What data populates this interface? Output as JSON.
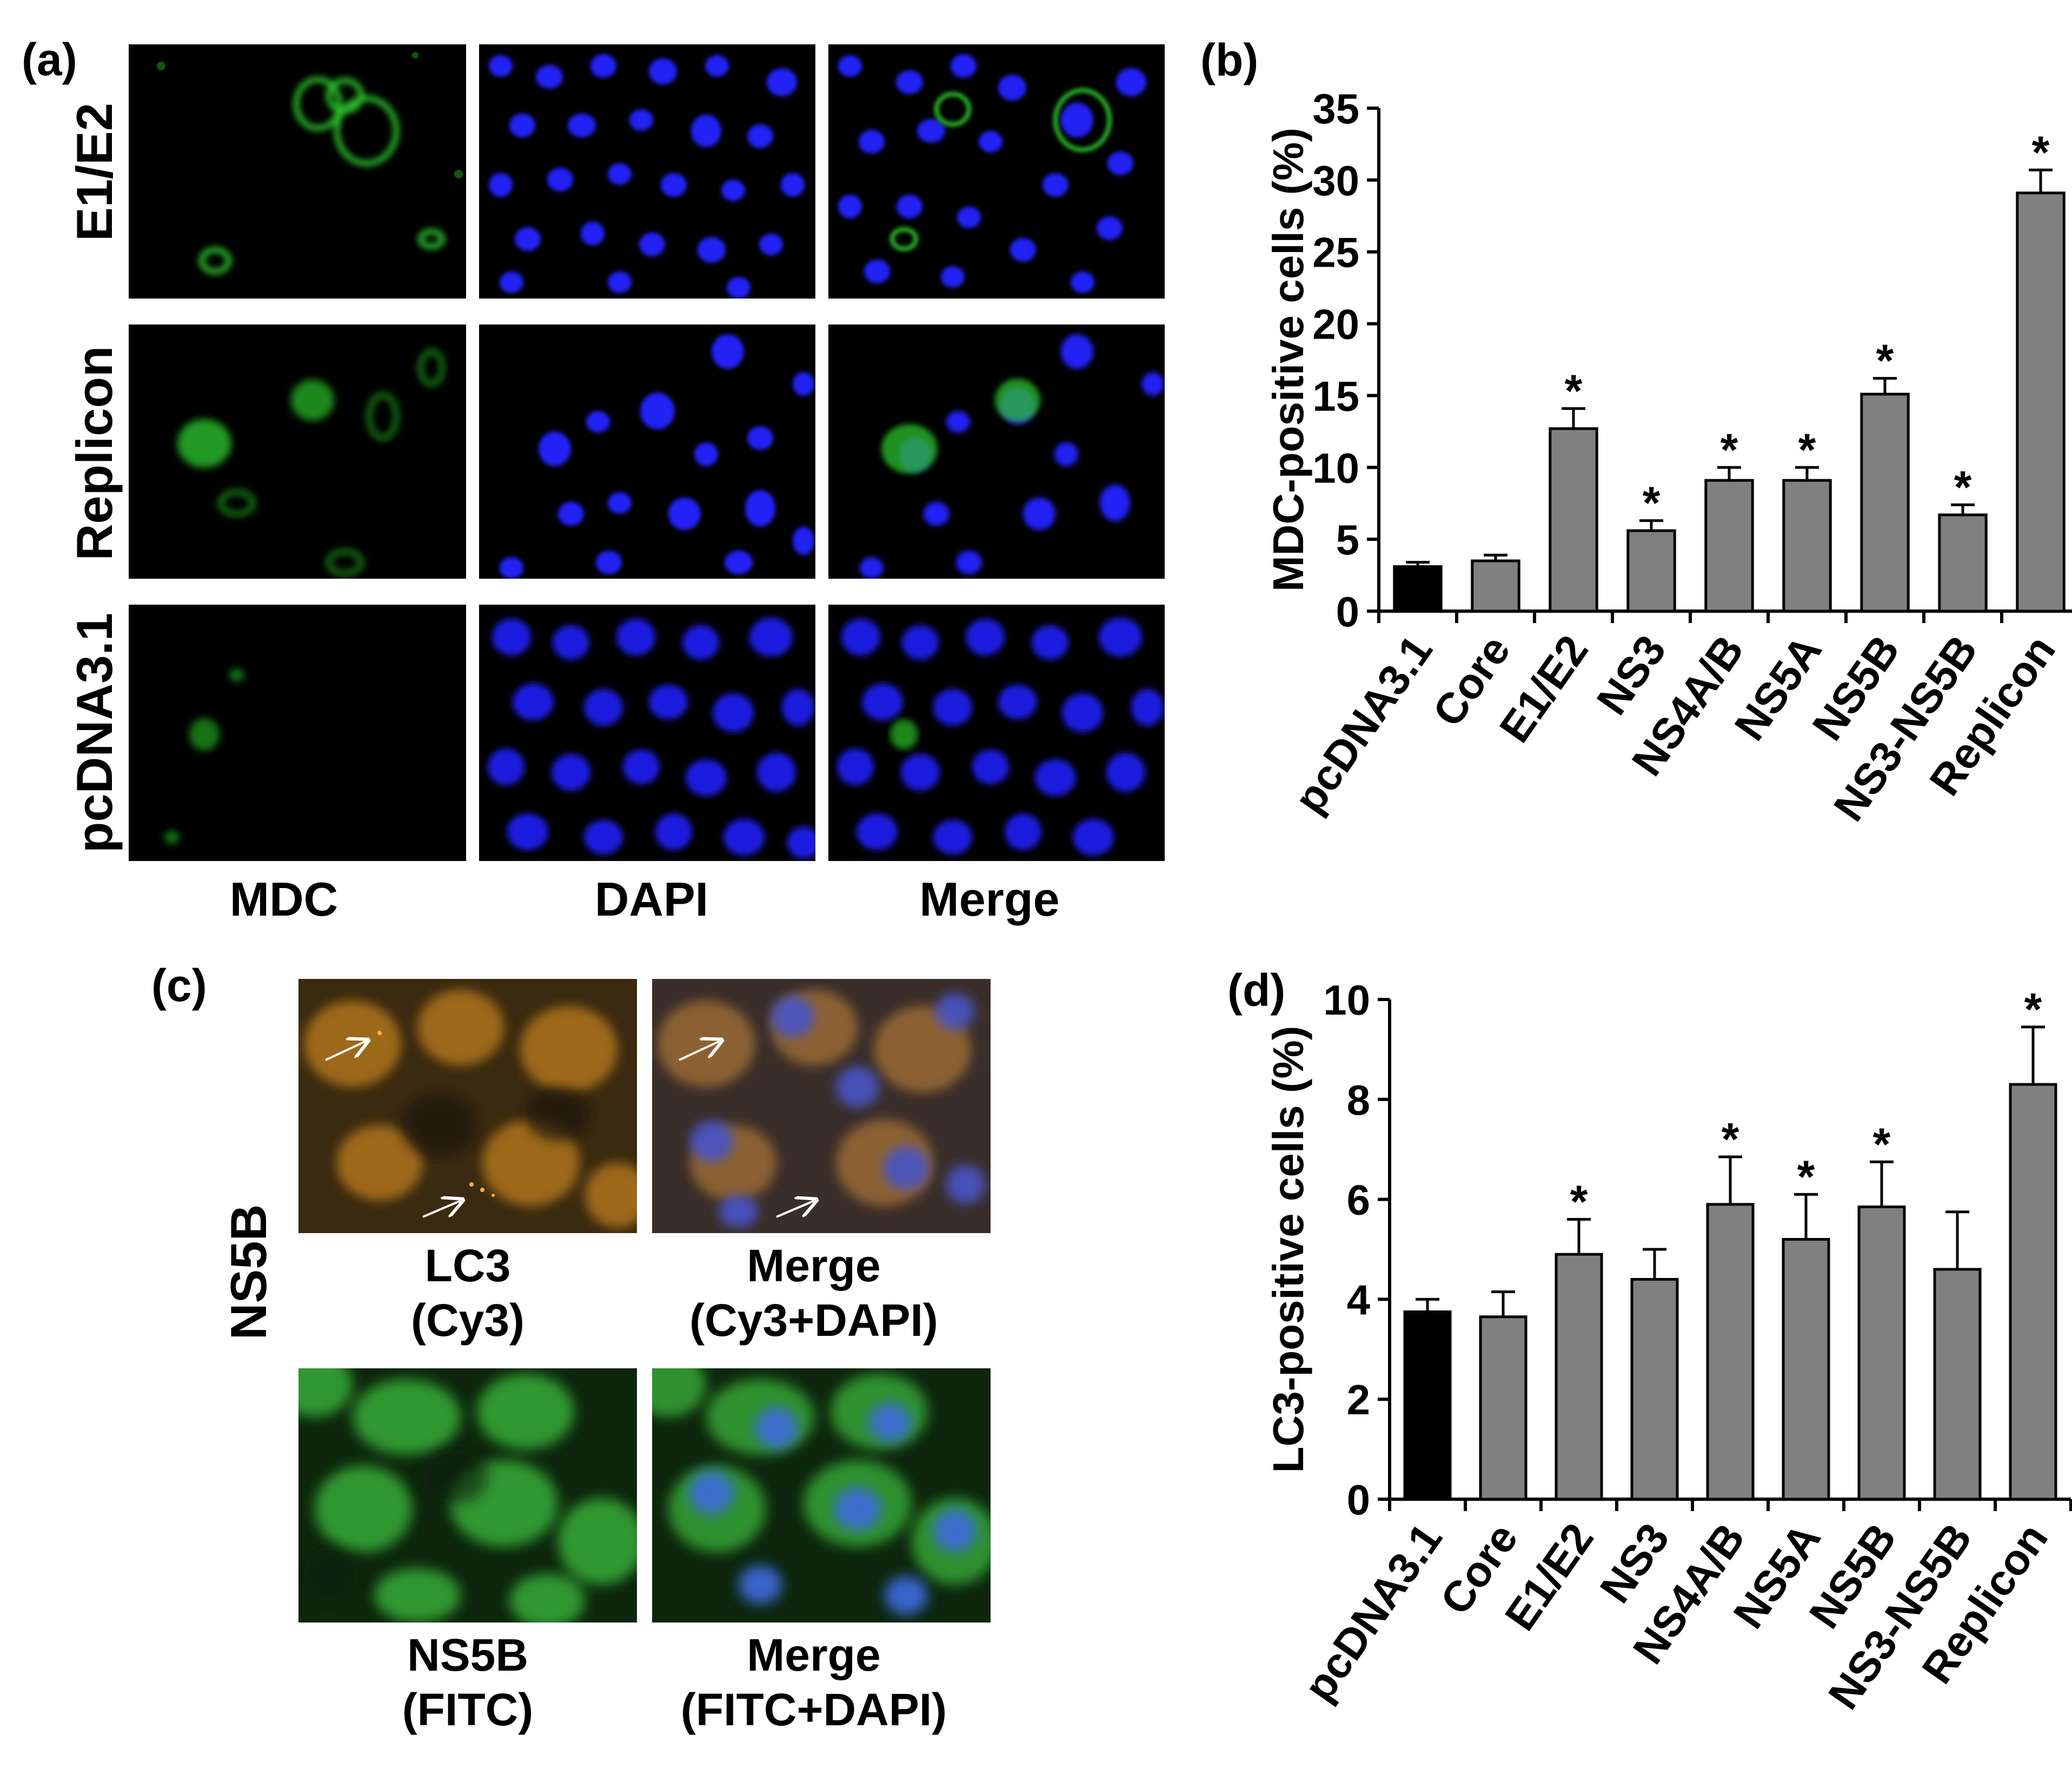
{
  "panel_a": {
    "label": "(a)",
    "rows": [
      "E1/E2",
      "Replicon",
      "pcDNA3.1"
    ],
    "columns": [
      "MDC",
      "DAPI",
      "Merge"
    ],
    "colors": {
      "mdc": "#1fb51f",
      "dapi": "#1a1aff"
    }
  },
  "panel_c": {
    "label": "(c)",
    "row_label": "NS5B",
    "captions": {
      "lc3": [
        "LC3",
        "(Cy3)"
      ],
      "merge1": [
        "Merge",
        "(Cy3+DAPI)"
      ],
      "ns5b": [
        "NS5B",
        "(FITC)"
      ],
      "merge2": [
        "Merge",
        "(FITC+DAPI)"
      ]
    }
  },
  "chart_data": [
    {
      "panel": "(b)",
      "type": "bar",
      "ylabel": "MDC-positive cells (%)",
      "ylim": [
        0,
        35
      ],
      "yticks": [
        0,
        5,
        10,
        15,
        20,
        25,
        30,
        35
      ],
      "categories": [
        "pcDNA3.1",
        "Core",
        "E1/E2",
        "NS3",
        "NS4A/B",
        "NS5A",
        "NS5B",
        "NS3-NS5B",
        "Replicon"
      ],
      "values": [
        3.1,
        3.5,
        12.7,
        5.6,
        9.1,
        9.1,
        15.1,
        6.7,
        29.1
      ],
      "errors": [
        0.3,
        0.4,
        1.4,
        0.7,
        0.9,
        0.9,
        1.1,
        0.7,
        1.6
      ],
      "significant": [
        false,
        false,
        true,
        true,
        true,
        true,
        true,
        true,
        true
      ],
      "marker": "*",
      "bar_colors": [
        "#000000",
        "#808080",
        "#808080",
        "#808080",
        "#808080",
        "#808080",
        "#808080",
        "#808080",
        "#808080"
      ]
    },
    {
      "panel": "(d)",
      "type": "bar",
      "ylabel": "LC3-positive cells (%)",
      "ylim": [
        0,
        10
      ],
      "yticks": [
        0,
        2,
        4,
        6,
        8,
        10
      ],
      "categories": [
        "pcDNA3.1",
        "Core",
        "E1/E2",
        "NS3",
        "NS4A/B",
        "NS5A",
        "NS5B",
        "NS3-NS5B",
        "Replicon"
      ],
      "values": [
        3.75,
        3.65,
        4.9,
        4.4,
        5.9,
        5.2,
        5.85,
        4.6,
        8.3
      ],
      "errors": [
        0.25,
        0.5,
        0.7,
        0.6,
        0.95,
        0.9,
        0.9,
        1.15,
        1.15
      ],
      "significant": [
        false,
        false,
        true,
        false,
        true,
        true,
        true,
        false,
        true
      ],
      "marker": "*",
      "bar_colors": [
        "#000000",
        "#808080",
        "#808080",
        "#808080",
        "#808080",
        "#808080",
        "#808080",
        "#808080",
        "#808080"
      ]
    }
  ]
}
